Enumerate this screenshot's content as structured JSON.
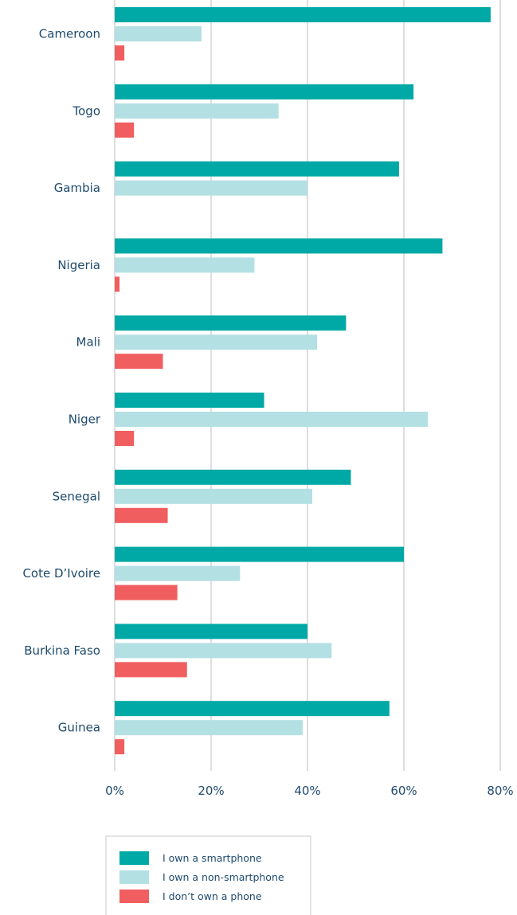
{
  "chart_data": {
    "type": "bar",
    "orientation": "horizontal",
    "categories": [
      "Cameroon",
      "Togo",
      "Gambia",
      "Nigeria",
      "Mali",
      "Niger",
      "Senegal",
      "Cote D’Ivoire",
      "Burkina Faso",
      "Guinea"
    ],
    "series": [
      {
        "name": "I own a smartphone",
        "color": "#00a9a5",
        "values": [
          78,
          62,
          59,
          68,
          48,
          31,
          49,
          60,
          40,
          57
        ]
      },
      {
        "name": "I own a non-smartphone",
        "color": "#b3e0e3",
        "values": [
          18,
          34,
          40,
          29,
          42,
          65,
          41,
          26,
          45,
          39
        ]
      },
      {
        "name": "I don’t own a phone",
        "color": "#f05e5f",
        "values": [
          2,
          4,
          0,
          1,
          10,
          4,
          11,
          13,
          15,
          2
        ]
      }
    ],
    "xlim": [
      0,
      80
    ],
    "x_ticks": [
      "0%",
      "20%",
      "40%",
      "60%",
      "80%"
    ],
    "grid": true,
    "legend_position": "bottom"
  }
}
